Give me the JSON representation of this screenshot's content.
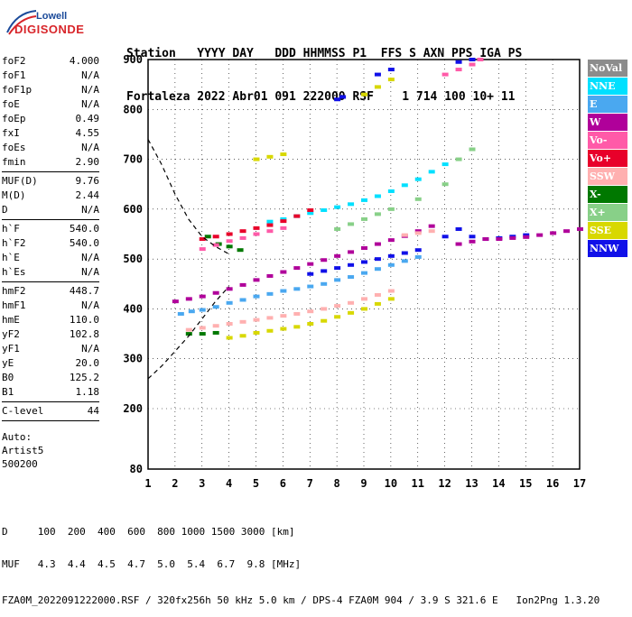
{
  "logo": {
    "top": "Lowell",
    "bottom": "DIGISONDE"
  },
  "header": {
    "line1": "Station   YYYY DAY   DDD HHMMSS P1  FFS S AXN PPS IGA PS",
    "line2": "Fortaleza 2022 Abr01 091 222000 RSF    1 714 100 10+ 11"
  },
  "params": [
    {
      "label": "foF2",
      "value": "4.000"
    },
    {
      "label": "foF1",
      "value": "N/A"
    },
    {
      "label": "foF1p",
      "value": "N/A"
    },
    {
      "label": "foE",
      "value": "N/A"
    },
    {
      "label": "foEp",
      "value": "0.49"
    },
    {
      "label": "fxI",
      "value": "4.55"
    },
    {
      "label": "foEs",
      "value": "N/A"
    },
    {
      "label": "fmin",
      "value": "2.90"
    },
    {
      "sep": true
    },
    {
      "label": "MUF(D)",
      "value": "9.76"
    },
    {
      "label": "M(D)",
      "value": "2.44"
    },
    {
      "label": "D",
      "value": "N/A"
    },
    {
      "sep": true
    },
    {
      "label": "h`F",
      "value": "540.0"
    },
    {
      "label": "h`F2",
      "value": "540.0"
    },
    {
      "label": "h`E",
      "value": "N/A"
    },
    {
      "label": "h`Es",
      "value": "N/A"
    },
    {
      "sep": true
    },
    {
      "label": "hmF2",
      "value": "448.7"
    },
    {
      "label": "hmF1",
      "value": "N/A"
    },
    {
      "label": "hmE",
      "value": "110.0"
    },
    {
      "label": "yF2",
      "value": "102.8"
    },
    {
      "label": "yF1",
      "value": "N/A"
    },
    {
      "label": "yE",
      "value": "20.0"
    },
    {
      "label": "B0",
      "value": "125.2"
    },
    {
      "label": "B1",
      "value": "1.18"
    },
    {
      "sep": true
    },
    {
      "label": "C-level",
      "value": "44"
    },
    {
      "sep": true
    }
  ],
  "auto": [
    "Auto:",
    "Artist5",
    "500200"
  ],
  "legend": [
    {
      "label": "NoVal",
      "color": "#8c8c8c"
    },
    {
      "label": "NNE",
      "color": "#00e0ff"
    },
    {
      "label": "E",
      "color": "#4aa8f0"
    },
    {
      "label": "W",
      "color": "#b0009a"
    },
    {
      "label": "Vo-",
      "color": "#ff5aa8"
    },
    {
      "label": "Vo+",
      "color": "#e8002a"
    },
    {
      "label": "SSW",
      "color": "#ffb0b0"
    },
    {
      "label": "X-",
      "color": "#007800"
    },
    {
      "label": "X+",
      "color": "#88d088"
    },
    {
      "label": "SSE",
      "color": "#d8d800"
    },
    {
      "label": "NNW",
      "color": "#1010e8"
    }
  ],
  "footer": {
    "d_row": "D     100  200  400  600  800 1000 1500 3000 [km]",
    "muf_row": "MUF   4.3  4.4  4.5  4.7  5.0  5.4  6.7  9.8 [MHz]",
    "info": "FZA0M_2022091222000.RSF / 320fx256h 50 kHz 5.0 km / DPS-4 FZA0M 904 / 3.9 S 321.6 E   Ion2Png 1.3.20"
  },
  "chart_data": {
    "type": "scatter",
    "xlim": [
      1,
      17
    ],
    "ylim": [
      80,
      900
    ],
    "x_ticks": [
      1,
      2,
      3,
      4,
      5,
      6,
      7,
      8,
      9,
      10,
      11,
      12,
      13,
      14,
      15,
      16,
      17
    ],
    "y_ticks": [
      80,
      200,
      300,
      400,
      500,
      600,
      700,
      800,
      900
    ],
    "grid": true,
    "series": [
      {
        "color": "#b0009a",
        "points": [
          [
            2.0,
            415
          ],
          [
            2.5,
            420
          ],
          [
            3,
            425
          ],
          [
            3.5,
            432
          ],
          [
            4,
            440
          ],
          [
            4.5,
            448
          ],
          [
            5,
            458
          ],
          [
            5.5,
            466
          ],
          [
            6,
            474
          ],
          [
            6.5,
            482
          ],
          [
            7,
            490
          ],
          [
            7.5,
            498
          ],
          [
            8,
            506
          ],
          [
            8.5,
            514
          ],
          [
            9,
            522
          ],
          [
            9.5,
            530
          ],
          [
            10,
            538
          ],
          [
            10.5,
            546
          ],
          [
            11,
            556
          ],
          [
            11.5,
            566
          ]
        ]
      },
      {
        "color": "#4aa8f0",
        "points": [
          [
            2.2,
            390
          ],
          [
            2.6,
            395
          ],
          [
            3,
            398
          ],
          [
            3.5,
            404
          ],
          [
            4,
            412
          ],
          [
            4.5,
            418
          ],
          [
            5,
            425
          ],
          [
            5.5,
            430
          ],
          [
            6,
            436
          ],
          [
            6.5,
            440
          ],
          [
            7,
            445
          ],
          [
            7.5,
            450
          ],
          [
            8,
            458
          ],
          [
            8.5,
            464
          ],
          [
            9,
            472
          ],
          [
            9.5,
            480
          ],
          [
            10,
            488
          ],
          [
            10.5,
            496
          ],
          [
            11,
            504
          ]
        ]
      },
      {
        "color": "#1010e8",
        "points": [
          [
            7,
            470
          ],
          [
            7.5,
            476
          ],
          [
            8,
            482
          ],
          [
            8.5,
            488
          ],
          [
            9,
            494
          ],
          [
            9.5,
            500
          ],
          [
            10,
            506
          ],
          [
            10.5,
            512
          ],
          [
            11,
            518
          ],
          [
            12,
            545
          ],
          [
            12.5,
            560
          ],
          [
            13,
            545
          ],
          [
            13.5,
            540
          ],
          [
            14,
            542
          ],
          [
            14.5,
            545
          ],
          [
            15,
            548
          ]
        ]
      },
      {
        "color": "#ffb0b0",
        "points": [
          [
            2.5,
            358
          ],
          [
            3,
            362
          ],
          [
            3.5,
            366
          ],
          [
            4,
            370
          ],
          [
            4.5,
            374
          ],
          [
            5,
            378
          ],
          [
            5.5,
            382
          ],
          [
            6,
            386
          ],
          [
            6.5,
            390
          ],
          [
            7,
            395
          ],
          [
            7.5,
            400
          ],
          [
            8,
            406
          ],
          [
            8.5,
            412
          ],
          [
            9,
            420
          ],
          [
            9.5,
            428
          ],
          [
            10,
            436
          ],
          [
            10.5,
            548
          ],
          [
            11,
            552
          ],
          [
            11.5,
            556
          ]
        ]
      },
      {
        "color": "#d8d800",
        "points": [
          [
            4,
            342
          ],
          [
            4.5,
            346
          ],
          [
            5,
            352
          ],
          [
            5.5,
            356
          ],
          [
            6,
            360
          ],
          [
            6.5,
            364
          ],
          [
            7,
            370
          ],
          [
            7.5,
            376
          ],
          [
            8,
            384
          ],
          [
            8.5,
            392
          ],
          [
            9,
            400
          ],
          [
            9.5,
            410
          ],
          [
            10,
            420
          ]
        ]
      },
      {
        "color": "#007800",
        "points": [
          [
            2.5,
            350
          ],
          [
            3,
            350
          ],
          [
            3.5,
            352
          ],
          [
            3.2,
            545
          ],
          [
            3.6,
            530
          ],
          [
            4,
            525
          ],
          [
            4.4,
            518
          ]
        ]
      },
      {
        "color": "#00e0ff",
        "points": [
          [
            5.5,
            575
          ],
          [
            6,
            580
          ],
          [
            6.5,
            586
          ],
          [
            7,
            592
          ],
          [
            7.5,
            598
          ],
          [
            8,
            604
          ],
          [
            8.5,
            610
          ],
          [
            9,
            618
          ],
          [
            9.5,
            626
          ],
          [
            10,
            636
          ],
          [
            10.5,
            648
          ],
          [
            11,
            660
          ],
          [
            11.5,
            675
          ],
          [
            12,
            690
          ]
        ]
      },
      {
        "color": "#e8002a",
        "points": [
          [
            3,
            540
          ],
          [
            3.5,
            545
          ],
          [
            4,
            550
          ],
          [
            4.5,
            556
          ],
          [
            5,
            562
          ],
          [
            5.5,
            568
          ],
          [
            6,
            576
          ],
          [
            6.5,
            586
          ],
          [
            7,
            598
          ]
        ]
      },
      {
        "color": "#ff5aa8",
        "points": [
          [
            3,
            520
          ],
          [
            3.5,
            528
          ],
          [
            4,
            536
          ],
          [
            4.5,
            542
          ],
          [
            5,
            550
          ],
          [
            5.5,
            556
          ],
          [
            6,
            562
          ]
        ]
      },
      {
        "color": "#b0009a",
        "points": [
          [
            12.5,
            530
          ],
          [
            13,
            535
          ],
          [
            13.5,
            540
          ],
          [
            14,
            540
          ],
          [
            14.5,
            542
          ],
          [
            15,
            544
          ],
          [
            15.5,
            548
          ],
          [
            16,
            552
          ],
          [
            16.5,
            556
          ],
          [
            17,
            560
          ]
        ]
      },
      {
        "color": "#88d088",
        "points": [
          [
            8,
            560
          ],
          [
            8.5,
            570
          ],
          [
            9,
            580
          ],
          [
            9.5,
            590
          ],
          [
            10,
            600
          ],
          [
            11,
            620
          ],
          [
            12,
            650
          ],
          [
            12.5,
            700
          ],
          [
            13,
            720
          ]
        ]
      },
      {
        "color": "#d8d800",
        "points": [
          [
            5,
            700
          ],
          [
            5.5,
            705
          ],
          [
            6,
            710
          ],
          [
            9,
            830
          ],
          [
            9.5,
            845
          ],
          [
            10,
            860
          ]
        ]
      },
      {
        "color": "#1010e8",
        "points": [
          [
            8,
            820
          ],
          [
            8.2,
            825
          ],
          [
            9.5,
            870
          ],
          [
            10,
            880
          ],
          [
            12.5,
            895
          ],
          [
            13,
            900
          ]
        ]
      },
      {
        "color": "#ff5aa8",
        "points": [
          [
            12,
            870
          ],
          [
            12.5,
            880
          ],
          [
            13,
            890
          ],
          [
            13.3,
            900
          ]
        ]
      }
    ],
    "dashed_curves": [
      {
        "points": [
          [
            1,
            740
          ],
          [
            1.5,
            690
          ],
          [
            2,
            630
          ],
          [
            2.5,
            580
          ],
          [
            3,
            545
          ],
          [
            3.5,
            525
          ],
          [
            4,
            510
          ]
        ]
      },
      {
        "points": [
          [
            1,
            260
          ],
          [
            1.5,
            285
          ],
          [
            2,
            315
          ],
          [
            2.5,
            345
          ],
          [
            3,
            380
          ],
          [
            3.5,
            415
          ],
          [
            4,
            445
          ]
        ]
      }
    ]
  }
}
